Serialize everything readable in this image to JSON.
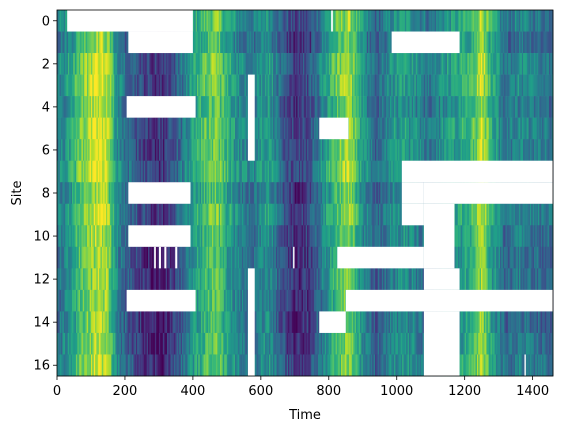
{
  "chart_data": {
    "type": "heatmap",
    "title": "",
    "xlabel": "Time",
    "ylabel": "Site",
    "xlim": [
      0,
      1460
    ],
    "ylim": [
      16.5,
      -0.5
    ],
    "x_ticks": [
      0,
      200,
      400,
      600,
      800,
      1000,
      1200,
      1400
    ],
    "y_ticks": [
      0,
      2,
      4,
      6,
      8,
      10,
      12,
      14,
      16
    ],
    "n_sites": 17,
    "n_time": 1460,
    "colormap": "viridis",
    "grid": false,
    "legend": "none",
    "missing_color": "#ffffff",
    "value_profile": [
      [
        0,
        0.4
      ],
      [
        40,
        0.55
      ],
      [
        70,
        0.75
      ],
      [
        100,
        0.85
      ],
      [
        125,
        0.95
      ],
      [
        150,
        0.85
      ],
      [
        180,
        0.45
      ],
      [
        230,
        0.25
      ],
      [
        270,
        0.15
      ],
      [
        310,
        0.1
      ],
      [
        360,
        0.3
      ],
      [
        400,
        0.55
      ],
      [
        440,
        0.7
      ],
      [
        470,
        0.8
      ],
      [
        500,
        0.6
      ],
      [
        540,
        0.45
      ],
      [
        580,
        0.4
      ],
      [
        620,
        0.55
      ],
      [
        660,
        0.3
      ],
      [
        700,
        0.15
      ],
      [
        740,
        0.2
      ],
      [
        780,
        0.45
      ],
      [
        820,
        0.7
      ],
      [
        860,
        0.85
      ],
      [
        900,
        0.5
      ],
      [
        940,
        0.3
      ],
      [
        980,
        0.45
      ],
      [
        1020,
        0.55
      ],
      [
        1060,
        0.45
      ],
      [
        1100,
        0.35
      ],
      [
        1140,
        0.5
      ],
      [
        1180,
        0.55
      ],
      [
        1220,
        0.65
      ],
      [
        1250,
        0.9
      ],
      [
        1280,
        0.6
      ],
      [
        1320,
        0.35
      ],
      [
        1360,
        0.45
      ],
      [
        1400,
        0.4
      ],
      [
        1460,
        0.35
      ]
    ],
    "missing_blocks": [
      {
        "site_start": 0,
        "site_end": 0,
        "t_start": 30,
        "t_end": 400
      },
      {
        "site_start": 1,
        "site_end": 1,
        "t_start": 210,
        "t_end": 400
      },
      {
        "site_start": 1,
        "site_end": 1,
        "t_start": 985,
        "t_end": 1185
      },
      {
        "site_start": 0,
        "site_end": 0,
        "t_start": 807,
        "t_end": 812
      },
      {
        "site_start": 3,
        "site_end": 6,
        "t_start": 562,
        "t_end": 582
      },
      {
        "site_start": 4,
        "site_end": 4,
        "t_start": 205,
        "t_end": 408
      },
      {
        "site_start": 5,
        "site_end": 5,
        "t_start": 772,
        "t_end": 858
      },
      {
        "site_start": 7,
        "site_end": 7,
        "t_start": 1015,
        "t_end": 1460
      },
      {
        "site_start": 8,
        "site_end": 8,
        "t_start": 210,
        "t_end": 393
      },
      {
        "site_start": 8,
        "site_end": 8,
        "t_start": 1015,
        "t_end": 1080
      },
      {
        "site_start": 8,
        "site_end": 8,
        "t_start": 1080,
        "t_end": 1460
      },
      {
        "site_start": 9,
        "site_end": 11,
        "t_start": 1080,
        "t_end": 1170
      },
      {
        "site_start": 9,
        "site_end": 9,
        "t_start": 1015,
        "t_end": 1080
      },
      {
        "site_start": 10,
        "site_end": 10,
        "t_start": 210,
        "t_end": 393
      },
      {
        "site_start": 11,
        "site_end": 11,
        "t_start": 286,
        "t_end": 291
      },
      {
        "site_start": 11,
        "site_end": 11,
        "t_start": 300,
        "t_end": 306
      },
      {
        "site_start": 11,
        "site_end": 11,
        "t_start": 316,
        "t_end": 322
      },
      {
        "site_start": 11,
        "site_end": 11,
        "t_start": 348,
        "t_end": 354
      },
      {
        "site_start": 11,
        "site_end": 11,
        "t_start": 695,
        "t_end": 699
      },
      {
        "site_start": 11,
        "site_end": 11,
        "t_start": 825,
        "t_end": 1080
      },
      {
        "site_start": 12,
        "site_end": 16,
        "t_start": 562,
        "t_end": 582
      },
      {
        "site_start": 12,
        "site_end": 12,
        "t_start": 1080,
        "t_end": 1185
      },
      {
        "site_start": 13,
        "site_end": 13,
        "t_start": 205,
        "t_end": 408
      },
      {
        "site_start": 13,
        "site_end": 13,
        "t_start": 850,
        "t_end": 1460
      },
      {
        "site_start": 14,
        "site_end": 16,
        "t_start": 1080,
        "t_end": 1185
      },
      {
        "site_start": 14,
        "site_end": 14,
        "t_start": 772,
        "t_end": 850
      },
      {
        "site_start": 16,
        "site_end": 16,
        "t_start": 1376,
        "t_end": 1380
      }
    ]
  }
}
